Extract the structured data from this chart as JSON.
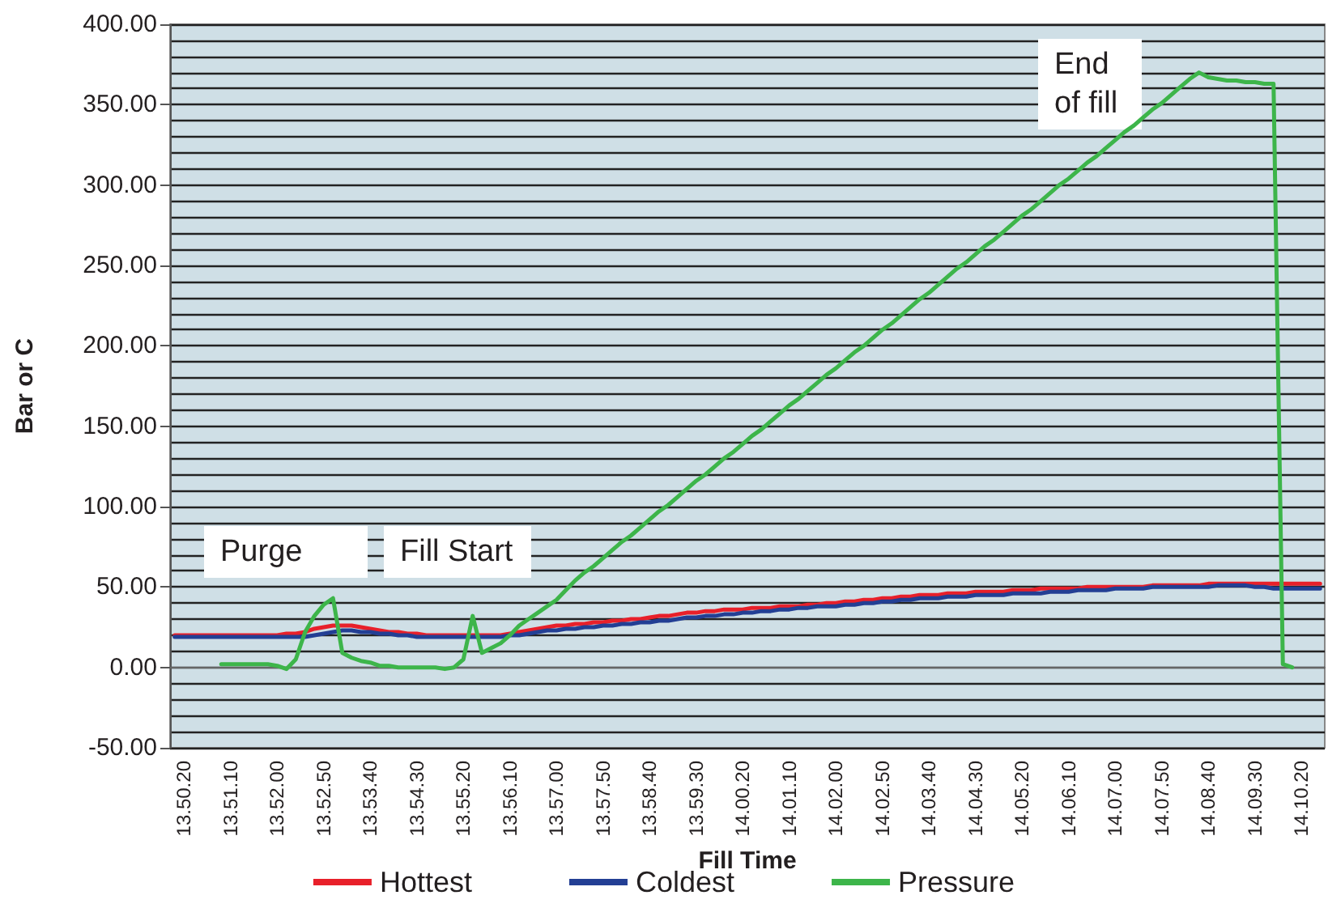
{
  "chart_data": {
    "type": "line",
    "xlabel": "Fill Time",
    "ylabel": "Bar or C",
    "categories": [
      null,
      "13.50.20",
      null,
      null,
      null,
      null,
      "13.51.10",
      null,
      null,
      null,
      null,
      "13.52.00",
      null,
      null,
      null,
      null,
      "13.52.50",
      null,
      null,
      null,
      null,
      "13.53.40",
      null,
      null,
      null,
      null,
      "13.54.30",
      null,
      null,
      null,
      null,
      "13.55.20",
      null,
      null,
      null,
      null,
      "13.56.10",
      null,
      null,
      null,
      null,
      "13.57.00",
      null,
      null,
      null,
      null,
      "13.57.50",
      null,
      null,
      null,
      null,
      "13.58.40",
      null,
      null,
      null,
      null,
      "13.59.30",
      null,
      null,
      null,
      null,
      "14.00.20",
      null,
      null,
      null,
      null,
      "14.01.10",
      null,
      null,
      null,
      null,
      "14.02.00",
      null,
      null,
      null,
      null,
      "14.02.50",
      null,
      null,
      null,
      null,
      "14.03.40",
      null,
      null,
      null,
      null,
      "14.04.30",
      null,
      null,
      null,
      null,
      "14.05.20",
      null,
      null,
      null,
      null,
      "14.06.10",
      null,
      null,
      null,
      null,
      "14.07.00",
      null,
      null,
      null,
      null,
      "14.07.50",
      null,
      null,
      null,
      null,
      "14.08.40",
      null,
      null,
      null,
      null,
      "14.09.30",
      null,
      null,
      null,
      null,
      "14.10.20",
      null,
      null
    ],
    "series": [
      {
        "name": "Hottest",
        "color": "#e8202a",
        "values": [
          20,
          20,
          20,
          20,
          20,
          20,
          20,
          20,
          20,
          20,
          20,
          20,
          21,
          21,
          22,
          24,
          25,
          26,
          26,
          26,
          25,
          24,
          23,
          22,
          22,
          21,
          21,
          20,
          20,
          20,
          20,
          20,
          20,
          20,
          20,
          20,
          21,
          22,
          23,
          24,
          25,
          26,
          26,
          27,
          27,
          28,
          28,
          29,
          29,
          30,
          30,
          31,
          32,
          32,
          33,
          34,
          34,
          35,
          35,
          36,
          36,
          36,
          37,
          37,
          37,
          38,
          38,
          38,
          39,
          39,
          40,
          40,
          41,
          41,
          42,
          42,
          43,
          43,
          44,
          44,
          45,
          45,
          45,
          46,
          46,
          46,
          47,
          47,
          47,
          47,
          48,
          48,
          48,
          49,
          49,
          49,
          49,
          49,
          50,
          50,
          50,
          50,
          50,
          50,
          50,
          51,
          51,
          51,
          51,
          51,
          51,
          52,
          52,
          52,
          52,
          52,
          52,
          52,
          52,
          52,
          52,
          52,
          52,
          52
        ]
      },
      {
        "name": "Coldest",
        "color": "#233f94",
        "values": [
          19,
          19,
          19,
          19,
          19,
          19,
          19,
          19,
          19,
          19,
          19,
          19,
          19,
          19,
          19,
          20,
          21,
          22,
          23,
          23,
          22,
          22,
          21,
          21,
          20,
          20,
          19,
          19,
          19,
          19,
          19,
          19,
          19,
          19,
          19,
          19,
          20,
          20,
          21,
          22,
          23,
          23,
          24,
          24,
          25,
          25,
          26,
          26,
          27,
          27,
          28,
          28,
          29,
          29,
          30,
          31,
          31,
          32,
          32,
          33,
          33,
          34,
          34,
          35,
          35,
          36,
          36,
          37,
          37,
          38,
          38,
          38,
          39,
          39,
          40,
          40,
          41,
          41,
          42,
          42,
          43,
          43,
          43,
          44,
          44,
          44,
          45,
          45,
          45,
          45,
          46,
          46,
          46,
          46,
          47,
          47,
          47,
          48,
          48,
          48,
          48,
          49,
          49,
          49,
          49,
          50,
          50,
          50,
          50,
          50,
          50,
          50,
          51,
          51,
          51,
          51,
          50,
          50,
          49,
          49,
          49,
          49,
          49,
          49
        ]
      },
      {
        "name": "Pressure",
        "color": "#3db54a",
        "values": [
          null,
          null,
          null,
          null,
          null,
          2,
          2,
          2,
          2,
          2,
          2,
          1,
          -1,
          5,
          22,
          32,
          39,
          43,
          9,
          6,
          4,
          3,
          1,
          1,
          0,
          0,
          0,
          0,
          0,
          -1,
          0,
          5,
          32,
          9,
          12,
          15,
          20,
          26,
          30,
          34,
          38,
          42,
          48,
          54,
          59,
          63,
          68,
          73,
          78,
          82,
          87,
          92,
          97,
          101,
          106,
          111,
          116,
          120,
          125,
          130,
          134,
          139,
          144,
          148,
          153,
          158,
          163,
          167,
          172,
          177,
          182,
          186,
          191,
          196,
          200,
          205,
          210,
          214,
          219,
          224,
          229,
          233,
          238,
          243,
          248,
          252,
          257,
          262,
          266,
          271,
          276,
          281,
          285,
          290,
          295,
          300,
          304,
          309,
          314,
          318,
          323,
          328,
          333,
          337,
          342,
          347,
          351,
          356,
          361,
          366,
          370,
          367,
          366,
          365,
          365,
          364,
          364,
          363,
          363,
          2,
          0,
          null,
          null,
          null
        ]
      }
    ],
    "ylim": [
      -50,
      400
    ],
    "yticks": [
      {
        "value": -50,
        "label": "-50.00"
      },
      {
        "value": 0,
        "label": "0.00"
      },
      {
        "value": 50,
        "label": "50.00"
      },
      {
        "value": 100,
        "label": "100.00"
      },
      {
        "value": 150,
        "label": "150.00"
      },
      {
        "value": 200,
        "label": "200.00"
      },
      {
        "value": 250,
        "label": "250.00"
      },
      {
        "value": 300,
        "label": "300.00"
      },
      {
        "value": 350,
        "label": "350.00"
      },
      {
        "value": 400,
        "label": "400.00"
      }
    ],
    "annotations": [
      "Purge",
      "Fill Start",
      "End of fill"
    ],
    "grid": "y",
    "legend": "bottom",
    "marker": "none",
    "line_style": "solid"
  }
}
